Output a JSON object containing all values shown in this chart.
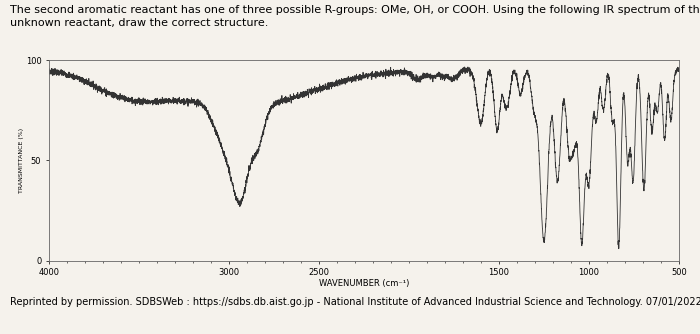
{
  "title_line1": "The second aromatic reactant has one of three possible R-groups: OMe, OH, or COOH. Using the following IR spectrum of this",
  "title_line2": "unknown reactant, draw the correct structure.",
  "xlabel": "WAVENUMBER (cm⁻¹)",
  "ylabel": "TRANSMITTANCE (%)",
  "xlim": [
    4000,
    500
  ],
  "ylim": [
    0,
    100
  ],
  "yticks": [
    0,
    50,
    100
  ],
  "xticks": [
    4000,
    3000,
    2500,
    1500,
    1000,
    500
  ],
  "caption": "Reprinted by permission. SDBSWeb : https://sdbs.db.aist.go.jp - National Institute of Advanced Industrial Science and Technology. 07/01/2022",
  "line_color": "#333333",
  "bg_color": "#f5f2ec",
  "fig_color": "#f5f2ec",
  "title_fontsize": 8,
  "axis_fontsize": 6,
  "caption_fontsize": 7
}
